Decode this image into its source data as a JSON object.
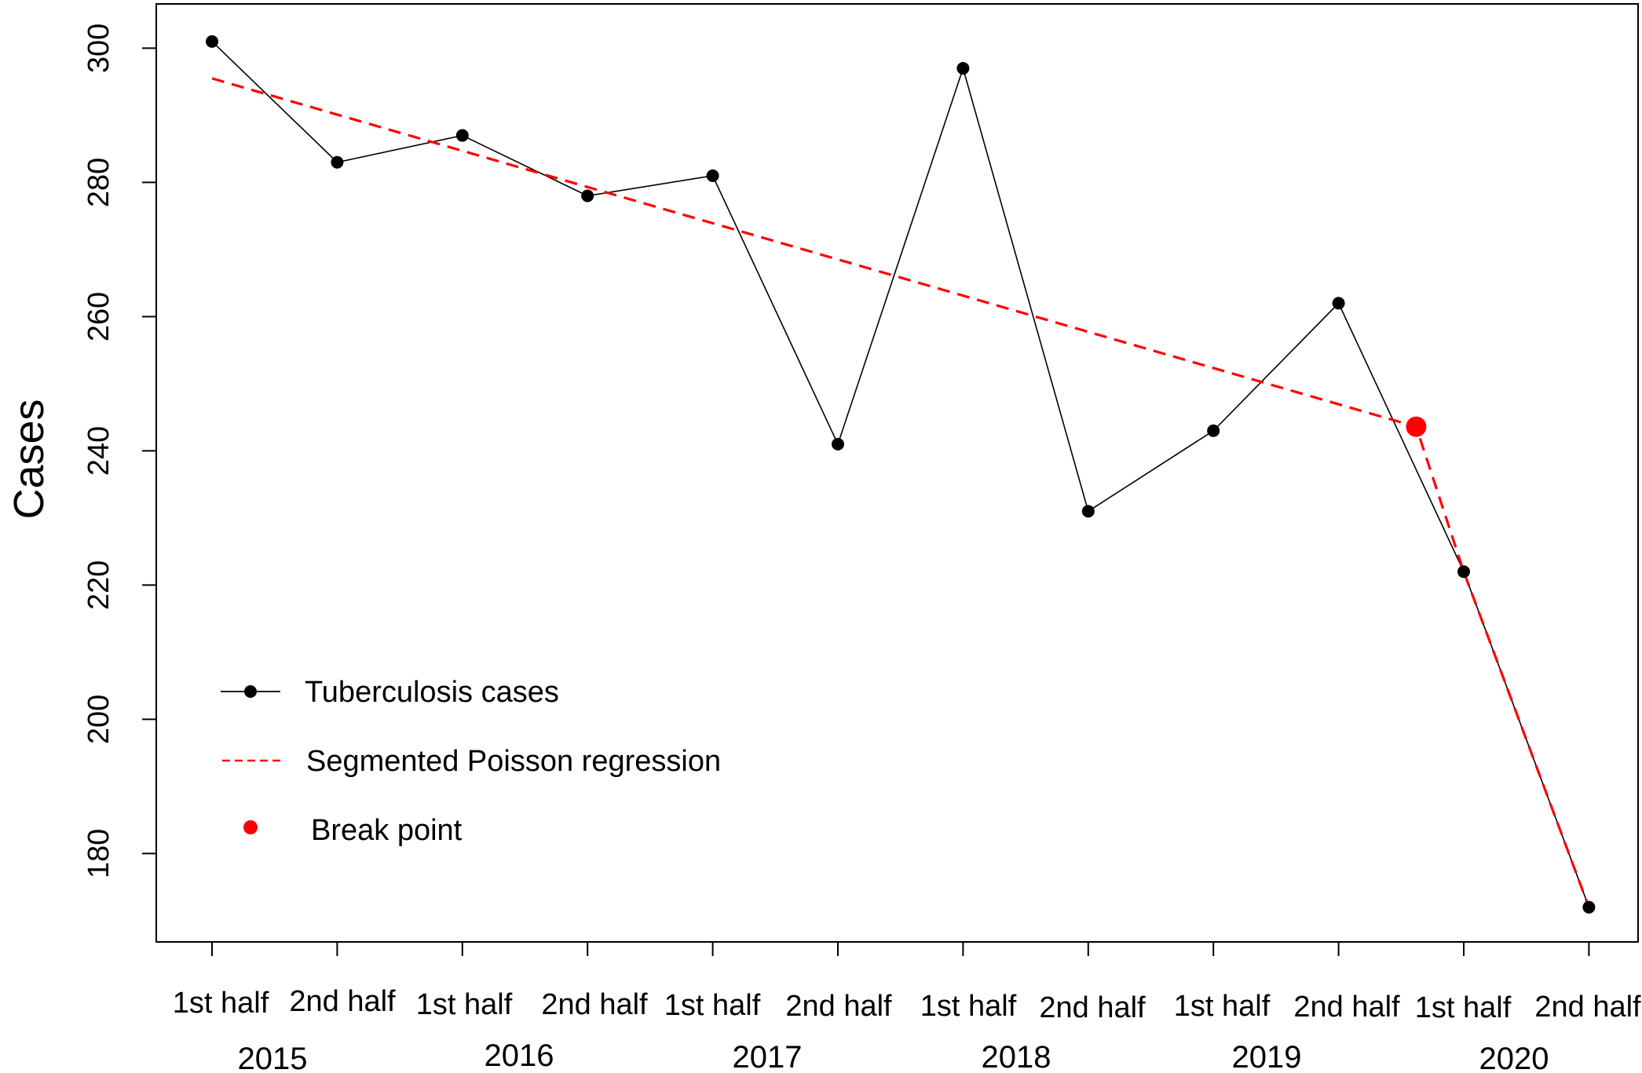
{
  "chart_data": {
    "type": "line",
    "title": "",
    "xlabel": "",
    "ylabel": "Cases",
    "ylim": [
      170,
      302
    ],
    "yticks": [
      180,
      200,
      220,
      240,
      260,
      280,
      300
    ],
    "categories": [
      "1st half",
      "2nd half",
      "1st half",
      "2nd half",
      "1st half",
      "2nd half",
      "1st half",
      "2nd half",
      "1st half",
      "2nd half",
      "1st half",
      "2nd half"
    ],
    "years": [
      "2015",
      "2016",
      "2017",
      "2018",
      "2019",
      "2020"
    ],
    "series": [
      {
        "name": "Tuberculosis cases",
        "style": "solid-line-with-points",
        "color": "#000000",
        "x": [
          1,
          2,
          3,
          4,
          5,
          6,
          7,
          8,
          9,
          10,
          11,
          12
        ],
        "values": [
          301,
          283,
          287,
          278,
          281,
          241,
          297,
          231,
          243,
          262,
          222,
          172
        ]
      },
      {
        "name": "Segmented Poisson regression",
        "style": "dashed-line",
        "color": "#ff0000",
        "x": [
          1,
          10.62,
          11,
          12
        ],
        "values": [
          295.5,
          243.6,
          222,
          172
        ]
      },
      {
        "name": "Break point",
        "style": "point",
        "color": "#ff0000",
        "x": [
          10.62
        ],
        "values": [
          243.6
        ]
      }
    ],
    "legend": {
      "position": "bottom-left",
      "entries": [
        "Tuberculosis cases",
        "Segmented Poisson regression",
        "Break point"
      ]
    },
    "grid": false
  }
}
